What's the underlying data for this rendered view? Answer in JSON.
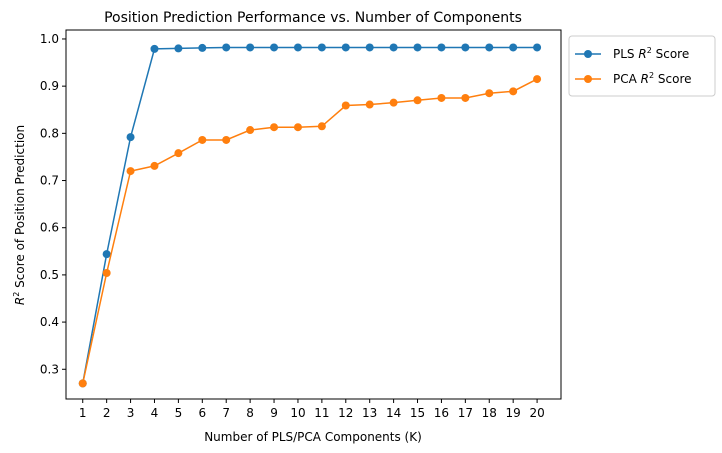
{
  "chart_data": {
    "type": "line",
    "title": "Position Prediction Performance vs. Number of Components",
    "xlabel": "Number of PLS/PCA Components (K)",
    "ylabel": "R² Score of Position Prediction",
    "ylabel_parts": {
      "italic": "R",
      "sup": "2",
      "rest": " Score of Position Prediction"
    },
    "categories": [
      1,
      2,
      3,
      4,
      5,
      6,
      7,
      8,
      9,
      10,
      11,
      12,
      13,
      14,
      15,
      16,
      17,
      18,
      19,
      20
    ],
    "xlim": [
      0.3,
      21.0
    ],
    "ylim": [
      0.237,
      1.019
    ],
    "yticks": [
      0.3,
      0.4,
      0.5,
      0.6,
      0.7,
      0.8,
      0.9,
      1.0
    ],
    "ytick_labels": [
      "0.3",
      "0.4",
      "0.5",
      "0.6",
      "0.7",
      "0.8",
      "0.9",
      "1.0"
    ],
    "grid": false,
    "legend_position": "outside-top-right",
    "series": [
      {
        "name": "PLS R² Score",
        "label_parts": {
          "pre": "PLS ",
          "italic": "R",
          "sup": "2",
          "post": " Score"
        },
        "color": "#1f77b4",
        "values": [
          0.27,
          0.544,
          0.792,
          0.979,
          0.98,
          0.981,
          0.982,
          0.982,
          0.982,
          0.982,
          0.982,
          0.982,
          0.982,
          0.982,
          0.982,
          0.982,
          0.982,
          0.982,
          0.982,
          0.982
        ]
      },
      {
        "name": "PCA R² Score",
        "label_parts": {
          "pre": "PCA ",
          "italic": "R",
          "sup": "2",
          "post": " Score"
        },
        "color": "#ff7f0e",
        "values": [
          0.27,
          0.504,
          0.72,
          0.731,
          0.758,
          0.786,
          0.786,
          0.807,
          0.813,
          0.813,
          0.815,
          0.859,
          0.861,
          0.865,
          0.87,
          0.875,
          0.875,
          0.885,
          0.889,
          0.915
        ]
      }
    ]
  }
}
